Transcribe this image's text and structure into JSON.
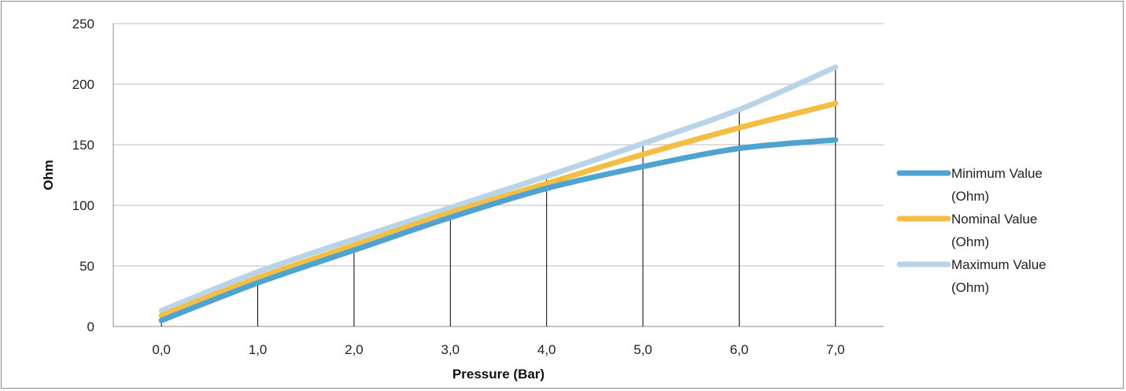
{
  "chart_data": {
    "type": "line",
    "title": "",
    "xlabel": "Pressure (Bar)",
    "ylabel": "Ohm",
    "categories": [
      "0,0",
      "1,0",
      "2,0",
      "3,0",
      "4,0",
      "5,0",
      "6,0",
      "7,0"
    ],
    "ylim": [
      0,
      250
    ],
    "yticks": [
      "0",
      "50",
      "100",
      "150",
      "200",
      "250"
    ],
    "grid": "horizontal",
    "drop_lines": true,
    "legend_position": "right",
    "series": [
      {
        "name": "Minimum Value (Ohm)",
        "color": "#4ea3d0",
        "values": [
          5,
          36,
          63,
          90,
          114,
          132,
          147,
          154
        ]
      },
      {
        "name": "Nominal Value (Ohm)",
        "color": "#f5bd41",
        "values": [
          9,
          40,
          67,
          94,
          118,
          142,
          164,
          184
        ]
      },
      {
        "name": "Maximum Value (Ohm)",
        "color": "#b7d4e8",
        "values": [
          13,
          45,
          72,
          98,
          124,
          151,
          179,
          214
        ]
      }
    ]
  }
}
